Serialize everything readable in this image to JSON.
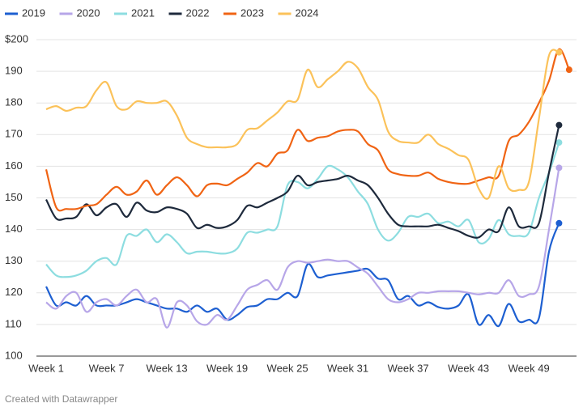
{
  "chart_data": {
    "type": "line",
    "categories": [
      "Week 1",
      null,
      null,
      null,
      null,
      null,
      "Week 7",
      null,
      null,
      null,
      null,
      null,
      "Week 13",
      null,
      null,
      null,
      null,
      null,
      "Week 19",
      null,
      null,
      null,
      null,
      null,
      "Week 25",
      null,
      null,
      null,
      null,
      null,
      "Week 31",
      null,
      null,
      null,
      null,
      null,
      "Week 37",
      null,
      null,
      null,
      null,
      null,
      "Week 43",
      null,
      null,
      null,
      null,
      null,
      "Week 49",
      null,
      null,
      null,
      null
    ],
    "series": [
      {
        "name": "2019",
        "color": "#1d5fd1",
        "values": [
          122,
          116,
          117,
          116,
          119,
          116,
          116,
          116,
          117,
          118,
          117,
          116,
          115,
          115,
          114,
          116,
          114,
          115,
          111.5,
          113,
          115.5,
          116,
          118,
          118,
          120,
          119,
          129,
          125,
          125.5,
          126,
          126.5,
          127,
          127.5,
          124.5,
          124,
          118,
          119,
          116,
          117,
          115.5,
          115,
          116,
          119.5,
          110,
          113,
          109.5,
          116.5,
          111,
          111.5,
          112,
          133,
          142,
          null
        ]
      },
      {
        "name": "2020",
        "color": "#b7a6e8",
        "values": [
          117,
          115,
          119,
          120,
          114,
          117,
          118,
          116,
          119,
          121,
          117,
          118,
          109,
          117,
          116,
          111,
          110,
          113,
          111.5,
          116,
          121,
          122.5,
          124,
          121,
          128,
          130,
          129.5,
          130,
          130.5,
          130,
          130,
          128,
          126,
          122,
          118,
          117,
          118,
          120,
          120,
          120.5,
          120.5,
          120.5,
          120,
          119.5,
          120,
          120,
          124,
          119,
          119.5,
          122,
          140,
          159.5,
          null
        ]
      },
      {
        "name": "2021",
        "color": "#8ddde0",
        "values": [
          129,
          125.5,
          125,
          125.5,
          127,
          130,
          131,
          129,
          138,
          138,
          140,
          136,
          138.5,
          136,
          132.5,
          133,
          133,
          132.5,
          132.5,
          134,
          139,
          139,
          140,
          141,
          154,
          155,
          153,
          156,
          160,
          159,
          156.5,
          152,
          148,
          140,
          136.5,
          139,
          144,
          144,
          145,
          142,
          142.5,
          141,
          143,
          136,
          137,
          143,
          138.5,
          138,
          139,
          150,
          158,
          167.5,
          null
        ]
      },
      {
        "name": "2022",
        "color": "#1e2a3c",
        "values": [
          149.5,
          143.5,
          143.5,
          144,
          148,
          144.5,
          147,
          148,
          144,
          148.5,
          146,
          145.5,
          147,
          146.5,
          145,
          140.5,
          141.5,
          140.5,
          141,
          143,
          147.5,
          147,
          148.5,
          150,
          152,
          157,
          154,
          155,
          155.5,
          156,
          157,
          155.5,
          154,
          150,
          145,
          141.5,
          141,
          141,
          141,
          141.5,
          140.5,
          139.5,
          138,
          137.5,
          140,
          139.5,
          147,
          141,
          141,
          142,
          158,
          173,
          null
        ]
      },
      {
        "name": "2023",
        "color": "#f06414",
        "values": [
          159,
          147,
          146.5,
          146.5,
          147.5,
          148,
          151,
          153.5,
          151,
          152,
          155.5,
          151,
          154,
          156.5,
          154,
          150.5,
          154,
          154.5,
          154,
          156,
          158,
          161,
          160,
          164,
          165,
          171.5,
          168,
          169,
          169.5,
          171,
          171.5,
          171,
          167,
          165,
          159,
          157.5,
          157,
          157,
          158,
          156,
          155,
          154.5,
          154.5,
          155.5,
          156.5,
          157,
          168,
          170,
          174,
          180,
          187,
          197,
          190.5
        ]
      },
      {
        "name": "2024",
        "color": "#fbc25a",
        "values": [
          178,
          179,
          177.5,
          178.5,
          179,
          184,
          186.5,
          179,
          178,
          180.5,
          180,
          180,
          180.5,
          176,
          169,
          167,
          166,
          166,
          166,
          167,
          171.5,
          172,
          174.5,
          177,
          180.5,
          181,
          190.5,
          185,
          187.5,
          190,
          193,
          191,
          185,
          181,
          171,
          168,
          167.5,
          167.5,
          170,
          167,
          165.5,
          163.5,
          162,
          153,
          150,
          160,
          153,
          152.5,
          155,
          175,
          195,
          196,
          null
        ]
      }
    ],
    "ylim": [
      100,
      200
    ],
    "yticks": [
      100,
      110,
      120,
      130,
      140,
      150,
      160,
      170,
      180,
      190,
      {
        "value": 200,
        "label": "$200"
      }
    ],
    "grid": true,
    "legend": "top",
    "footer": "Created with Datawrapper"
  }
}
